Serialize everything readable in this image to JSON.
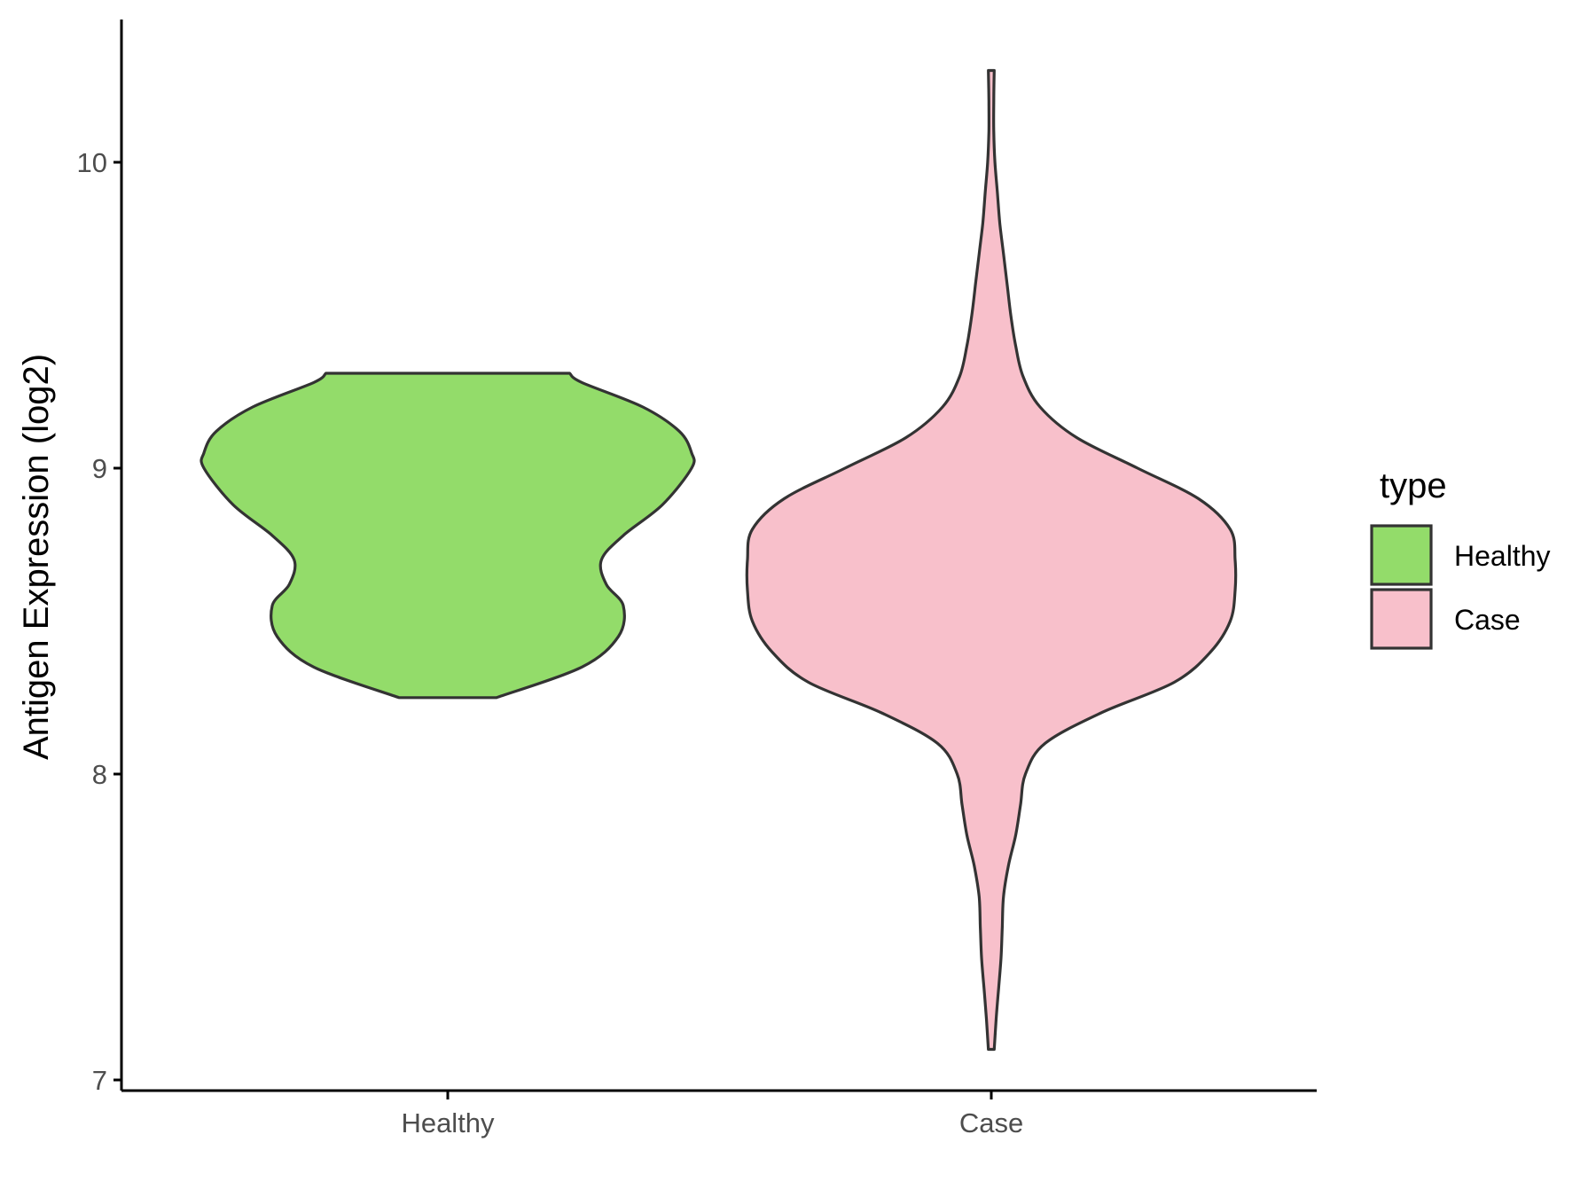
{
  "chart_data": {
    "type": "violin",
    "ylabel": "Antigen Expression (log2)",
    "xlabel": "",
    "ylim": [
      6.97,
      10.45
    ],
    "yticks": [
      7,
      8,
      9,
      10
    ],
    "categories": [
      "Healthy",
      "Case"
    ],
    "legend": {
      "title": "type",
      "position": "right",
      "entries": [
        "Healthy",
        "Case"
      ]
    },
    "grid": false,
    "series": [
      {
        "name": "Healthy",
        "color": "#93dc6a",
        "y_min": 8.25,
        "y_max": 9.31,
        "density_profile": [
          [
            8.25,
            0.2
          ],
          [
            8.35,
            0.55
          ],
          [
            8.45,
            0.7
          ],
          [
            8.55,
            0.72
          ],
          [
            8.62,
            0.65
          ],
          [
            8.7,
            0.63
          ],
          [
            8.78,
            0.72
          ],
          [
            8.88,
            0.88
          ],
          [
            9.0,
            1.0
          ],
          [
            9.05,
            1.0
          ],
          [
            9.12,
            0.95
          ],
          [
            9.2,
            0.8
          ],
          [
            9.28,
            0.55
          ],
          [
            9.31,
            0.5
          ]
        ]
      },
      {
        "name": "Case",
        "color": "#f8c0cb",
        "y_min": 7.1,
        "y_max": 10.3,
        "density_profile": [
          [
            7.1,
            0.012
          ],
          [
            7.2,
            0.02
          ],
          [
            7.3,
            0.03
          ],
          [
            7.4,
            0.04
          ],
          [
            7.5,
            0.045
          ],
          [
            7.6,
            0.05
          ],
          [
            7.7,
            0.07
          ],
          [
            7.8,
            0.1
          ],
          [
            7.9,
            0.12
          ],
          [
            8.0,
            0.14
          ],
          [
            8.1,
            0.22
          ],
          [
            8.2,
            0.45
          ],
          [
            8.3,
            0.75
          ],
          [
            8.4,
            0.9
          ],
          [
            8.5,
            0.98
          ],
          [
            8.6,
            1.0
          ],
          [
            8.7,
            1.0
          ],
          [
            8.8,
            0.98
          ],
          [
            8.9,
            0.85
          ],
          [
            9.0,
            0.6
          ],
          [
            9.1,
            0.35
          ],
          [
            9.2,
            0.2
          ],
          [
            9.3,
            0.13
          ],
          [
            9.4,
            0.1
          ],
          [
            9.5,
            0.08
          ],
          [
            9.6,
            0.065
          ],
          [
            9.7,
            0.05
          ],
          [
            9.8,
            0.035
          ],
          [
            9.9,
            0.025
          ],
          [
            10.0,
            0.015
          ],
          [
            10.1,
            0.01
          ],
          [
            10.2,
            0.01
          ],
          [
            10.3,
            0.012
          ]
        ]
      }
    ]
  }
}
